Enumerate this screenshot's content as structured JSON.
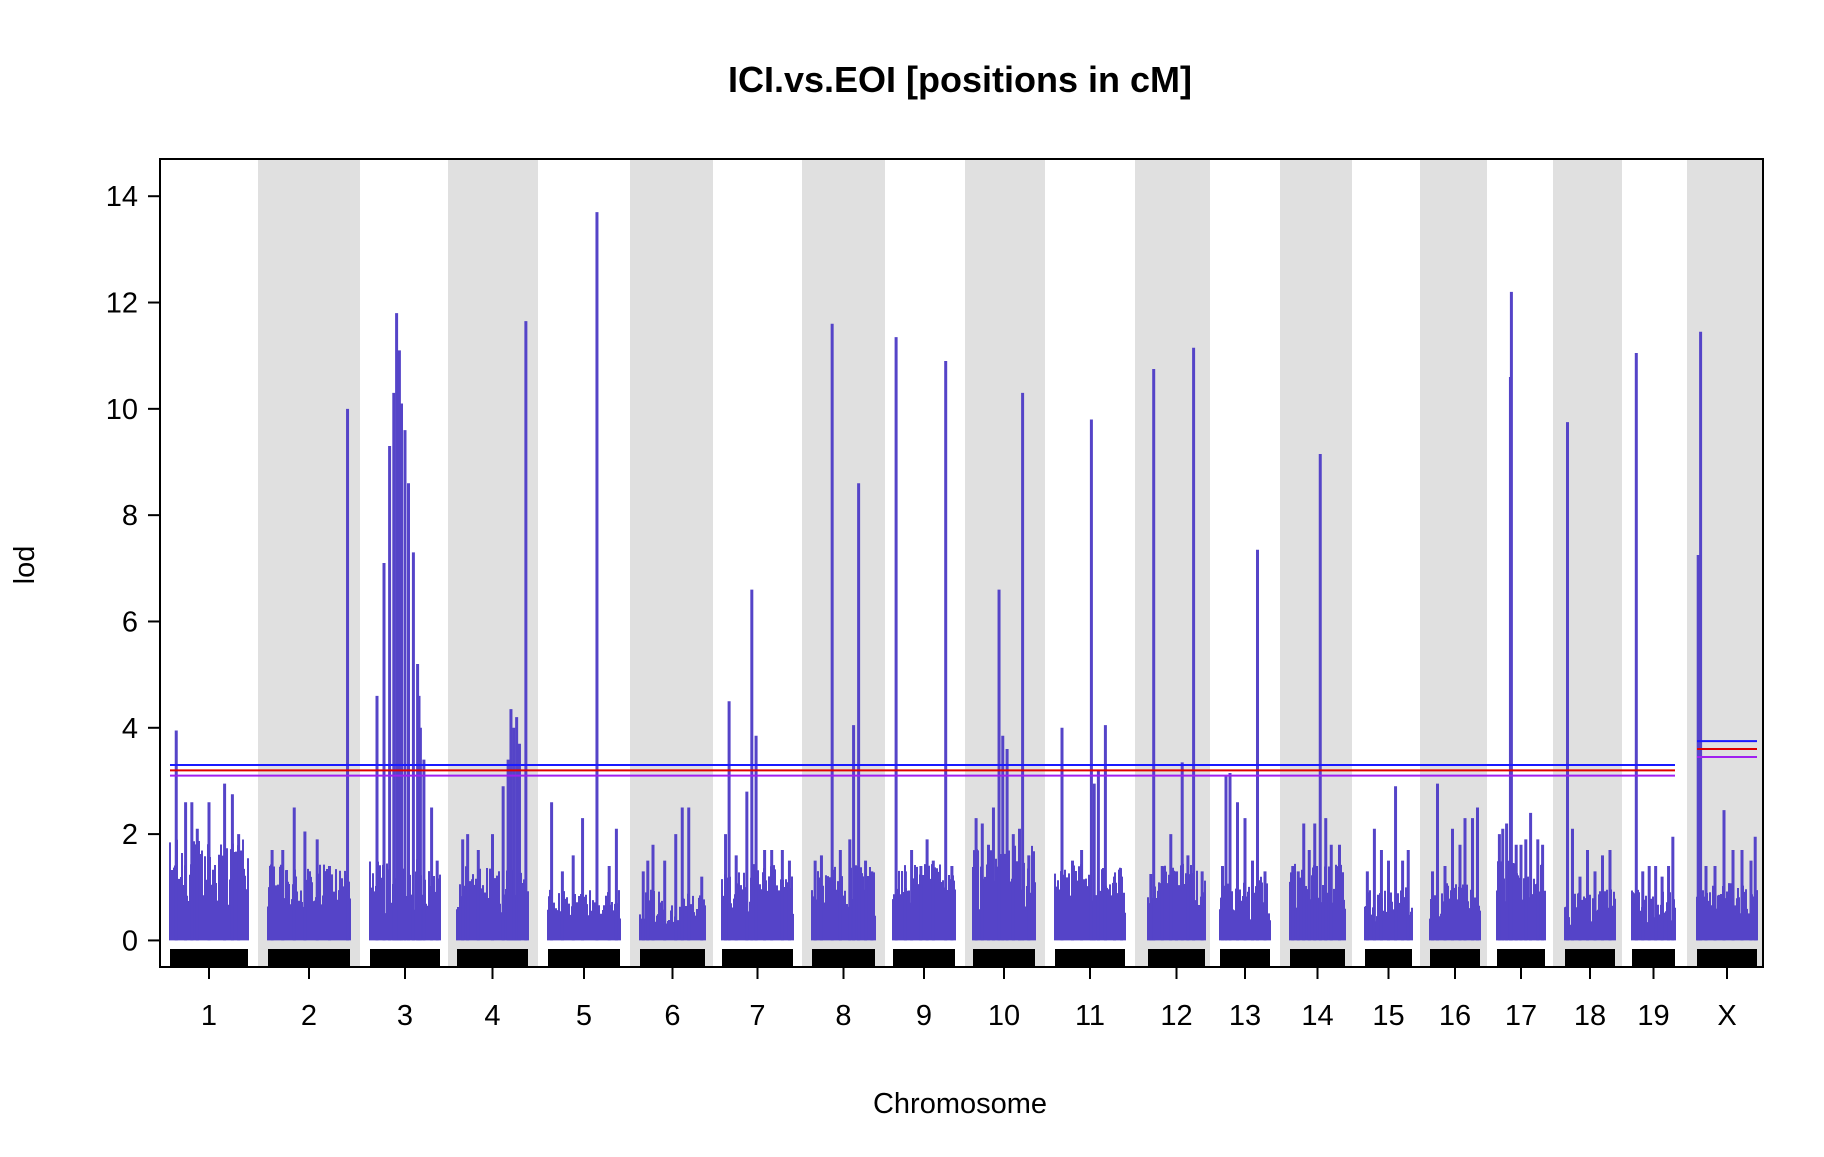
{
  "chart_data": {
    "type": "line",
    "title": "ICI.vs.EOI [positions in cM]",
    "xlabel": "Chromosome",
    "ylabel": "lod",
    "ylim": [
      -0.5,
      14.7
    ],
    "yticks": [
      0,
      2,
      4,
      6,
      8,
      10,
      12,
      14
    ],
    "series_color": "#5544c8",
    "band_color": "#e0e0e0",
    "chromosomes": [
      {
        "label": "1",
        "baseline": 1.6,
        "peaks": [
          [
            0.08,
            3.95
          ],
          [
            0.2,
            2.6
          ],
          [
            0.28,
            2.6
          ],
          [
            0.35,
            2.1
          ],
          [
            0.5,
            2.6
          ],
          [
            0.7,
            2.95
          ],
          [
            0.8,
            2.75
          ],
          [
            0.88,
            2.0
          ]
        ]
      },
      {
        "label": "2",
        "baseline": 1.2,
        "peaks": [
          [
            0.05,
            1.7
          ],
          [
            0.18,
            1.7
          ],
          [
            0.32,
            2.5
          ],
          [
            0.45,
            2.05
          ],
          [
            0.6,
            1.9
          ],
          [
            0.75,
            1.4
          ],
          [
            0.97,
            10.0
          ]
        ]
      },
      {
        "label": "3",
        "baseline": 1.3,
        "peaks": [
          [
            0.1,
            4.6
          ],
          [
            0.2,
            7.1
          ],
          [
            0.28,
            9.3
          ],
          [
            0.34,
            10.3
          ],
          [
            0.38,
            11.8
          ],
          [
            0.42,
            11.1
          ],
          [
            0.45,
            10.1
          ],
          [
            0.5,
            9.6
          ],
          [
            0.55,
            8.6
          ],
          [
            0.62,
            7.3
          ],
          [
            0.68,
            5.2
          ],
          [
            0.72,
            4.0
          ],
          [
            0.77,
            3.4
          ],
          [
            0.7,
            4.6
          ],
          [
            0.88,
            2.5
          ],
          [
            0.96,
            1.5
          ]
        ]
      },
      {
        "label": "4",
        "baseline": 1.2,
        "peaks": [
          [
            0.08,
            1.9
          ],
          [
            0.15,
            2.0
          ],
          [
            0.3,
            1.7
          ],
          [
            0.5,
            2.0
          ],
          [
            0.65,
            2.9
          ],
          [
            0.72,
            3.4
          ],
          [
            0.76,
            4.35
          ],
          [
            0.8,
            4.0
          ],
          [
            0.84,
            4.2
          ],
          [
            0.88,
            3.7
          ],
          [
            0.97,
            11.65
          ]
        ]
      },
      {
        "label": "5",
        "baseline": 0.8,
        "peaks": [
          [
            0.05,
            2.6
          ],
          [
            0.2,
            1.3
          ],
          [
            0.35,
            1.6
          ],
          [
            0.48,
            2.3
          ],
          [
            0.68,
            13.7
          ],
          [
            0.85,
            1.4
          ],
          [
            0.95,
            2.1
          ]
        ]
      },
      {
        "label": "6",
        "baseline": 0.8,
        "peaks": [
          [
            0.05,
            1.3
          ],
          [
            0.12,
            1.5
          ],
          [
            0.2,
            1.8
          ],
          [
            0.38,
            1.5
          ],
          [
            0.55,
            2.0
          ],
          [
            0.65,
            2.5
          ],
          [
            0.75,
            2.5
          ],
          [
            0.95,
            1.2
          ]
        ]
      },
      {
        "label": "7",
        "baseline": 1.2,
        "peaks": [
          [
            0.05,
            2.0
          ],
          [
            0.1,
            4.5
          ],
          [
            0.2,
            1.6
          ],
          [
            0.35,
            2.8
          ],
          [
            0.42,
            6.6
          ],
          [
            0.48,
            3.85
          ],
          [
            0.6,
            1.7
          ],
          [
            0.7,
            1.7
          ],
          [
            0.85,
            1.7
          ],
          [
            0.95,
            1.5
          ]
        ]
      },
      {
        "label": "8",
        "baseline": 1.2,
        "peaks": [
          [
            0.05,
            1.5
          ],
          [
            0.15,
            1.6
          ],
          [
            0.32,
            11.6
          ],
          [
            0.45,
            1.7
          ],
          [
            0.6,
            1.9
          ],
          [
            0.66,
            4.05
          ],
          [
            0.74,
            8.6
          ],
          [
            0.85,
            1.5
          ],
          [
            0.95,
            1.3
          ]
        ]
      },
      {
        "label": "9",
        "baseline": 1.2,
        "peaks": [
          [
            0.05,
            11.35
          ],
          [
            0.2,
            1.3
          ],
          [
            0.3,
            1.7
          ],
          [
            0.45,
            1.4
          ],
          [
            0.55,
            1.9
          ],
          [
            0.65,
            1.5
          ],
          [
            0.85,
            10.9
          ],
          [
            0.95,
            1.4
          ]
        ]
      },
      {
        "label": "10",
        "baseline": 1.5,
        "peaks": [
          [
            0.05,
            2.3
          ],
          [
            0.15,
            2.2
          ],
          [
            0.25,
            1.8
          ],
          [
            0.33,
            2.5
          ],
          [
            0.42,
            6.6
          ],
          [
            0.48,
            3.85
          ],
          [
            0.55,
            3.6
          ],
          [
            0.65,
            2.0
          ],
          [
            0.75,
            2.1
          ],
          [
            0.8,
            10.3
          ],
          [
            0.9,
            1.6
          ]
        ]
      },
      {
        "label": "11",
        "baseline": 1.2,
        "peaks": [
          [
            0.1,
            4.0
          ],
          [
            0.25,
            1.5
          ],
          [
            0.38,
            1.7
          ],
          [
            0.52,
            9.8
          ],
          [
            0.56,
            2.95
          ],
          [
            0.62,
            3.2
          ],
          [
            0.72,
            4.05
          ],
          [
            0.85,
            1.2
          ],
          [
            0.95,
            1.2
          ]
        ]
      },
      {
        "label": "12",
        "baseline": 1.2,
        "peaks": [
          [
            0.05,
            1.25
          ],
          [
            0.1,
            10.75
          ],
          [
            0.25,
            1.4
          ],
          [
            0.4,
            2.0
          ],
          [
            0.5,
            1.3
          ],
          [
            0.6,
            3.35
          ],
          [
            0.7,
            1.6
          ],
          [
            0.8,
            11.15
          ],
          [
            0.95,
            1.3
          ]
        ]
      },
      {
        "label": "13",
        "baseline": 1.0,
        "peaks": [
          [
            0.05,
            1.4
          ],
          [
            0.12,
            3.1
          ],
          [
            0.2,
            3.15
          ],
          [
            0.35,
            2.6
          ],
          [
            0.5,
            2.3
          ],
          [
            0.65,
            1.5
          ],
          [
            0.75,
            7.35
          ],
          [
            0.9,
            1.3
          ]
        ]
      },
      {
        "label": "14",
        "baseline": 1.2,
        "peaks": [
          [
            0.05,
            1.4
          ],
          [
            0.15,
            1.3
          ],
          [
            0.25,
            2.2
          ],
          [
            0.35,
            1.7
          ],
          [
            0.45,
            2.2
          ],
          [
            0.55,
            9.15
          ],
          [
            0.65,
            2.3
          ],
          [
            0.75,
            1.8
          ],
          [
            0.9,
            1.8
          ]
        ]
      },
      {
        "label": "15",
        "baseline": 0.9,
        "peaks": [
          [
            0.05,
            1.3
          ],
          [
            0.2,
            2.1
          ],
          [
            0.35,
            1.7
          ],
          [
            0.5,
            1.5
          ],
          [
            0.65,
            2.9
          ],
          [
            0.8,
            1.5
          ],
          [
            0.92,
            1.7
          ]
        ]
      },
      {
        "label": "16",
        "baseline": 0.9,
        "peaks": [
          [
            0.05,
            1.3
          ],
          [
            0.15,
            2.95
          ],
          [
            0.3,
            1.4
          ],
          [
            0.45,
            2.1
          ],
          [
            0.6,
            1.8
          ],
          [
            0.7,
            2.3
          ],
          [
            0.85,
            2.3
          ],
          [
            0.95,
            2.5
          ]
        ]
      },
      {
        "label": "17",
        "baseline": 1.3,
        "peaks": [
          [
            0.05,
            2.0
          ],
          [
            0.12,
            2.1
          ],
          [
            0.2,
            2.2
          ],
          [
            0.28,
            10.6
          ],
          [
            0.3,
            12.2
          ],
          [
            0.4,
            1.8
          ],
          [
            0.5,
            1.8
          ],
          [
            0.6,
            1.9
          ],
          [
            0.7,
            2.4
          ],
          [
            0.85,
            1.9
          ],
          [
            0.95,
            1.8
          ]
        ]
      },
      {
        "label": "18",
        "baseline": 0.8,
        "peaks": [
          [
            0.05,
            9.75
          ],
          [
            0.15,
            2.1
          ],
          [
            0.3,
            1.2
          ],
          [
            0.45,
            1.7
          ],
          [
            0.6,
            1.3
          ],
          [
            0.75,
            1.6
          ],
          [
            0.9,
            1.7
          ]
        ]
      },
      {
        "label": "19",
        "baseline": 0.8,
        "peaks": [
          [
            0.1,
            11.05
          ],
          [
            0.25,
            1.3
          ],
          [
            0.4,
            1.4
          ],
          [
            0.55,
            1.4
          ],
          [
            0.7,
            1.2
          ],
          [
            0.85,
            1.4
          ],
          [
            0.95,
            1.95
          ]
        ]
      },
      {
        "label": "X",
        "baseline": 0.9,
        "peaks": [
          [
            0.02,
            7.25
          ],
          [
            0.06,
            11.45
          ],
          [
            0.15,
            1.4
          ],
          [
            0.3,
            1.4
          ],
          [
            0.45,
            2.45
          ],
          [
            0.6,
            1.7
          ],
          [
            0.75,
            1.7
          ],
          [
            0.9,
            1.5
          ],
          [
            0.97,
            1.95
          ]
        ]
      }
    ],
    "thresholds": {
      "autosome": [
        {
          "lod": 3.3,
          "color": "#1a1aff"
        },
        {
          "lod": 3.2,
          "color": "#e00000"
        },
        {
          "lod": 3.1,
          "color": "#a020f0"
        }
      ],
      "x": [
        {
          "lod": 3.75,
          "color": "#1a1aff"
        },
        {
          "lod": 3.6,
          "color": "#e00000"
        },
        {
          "lod": 3.45,
          "color": "#a020f0"
        }
      ]
    }
  }
}
